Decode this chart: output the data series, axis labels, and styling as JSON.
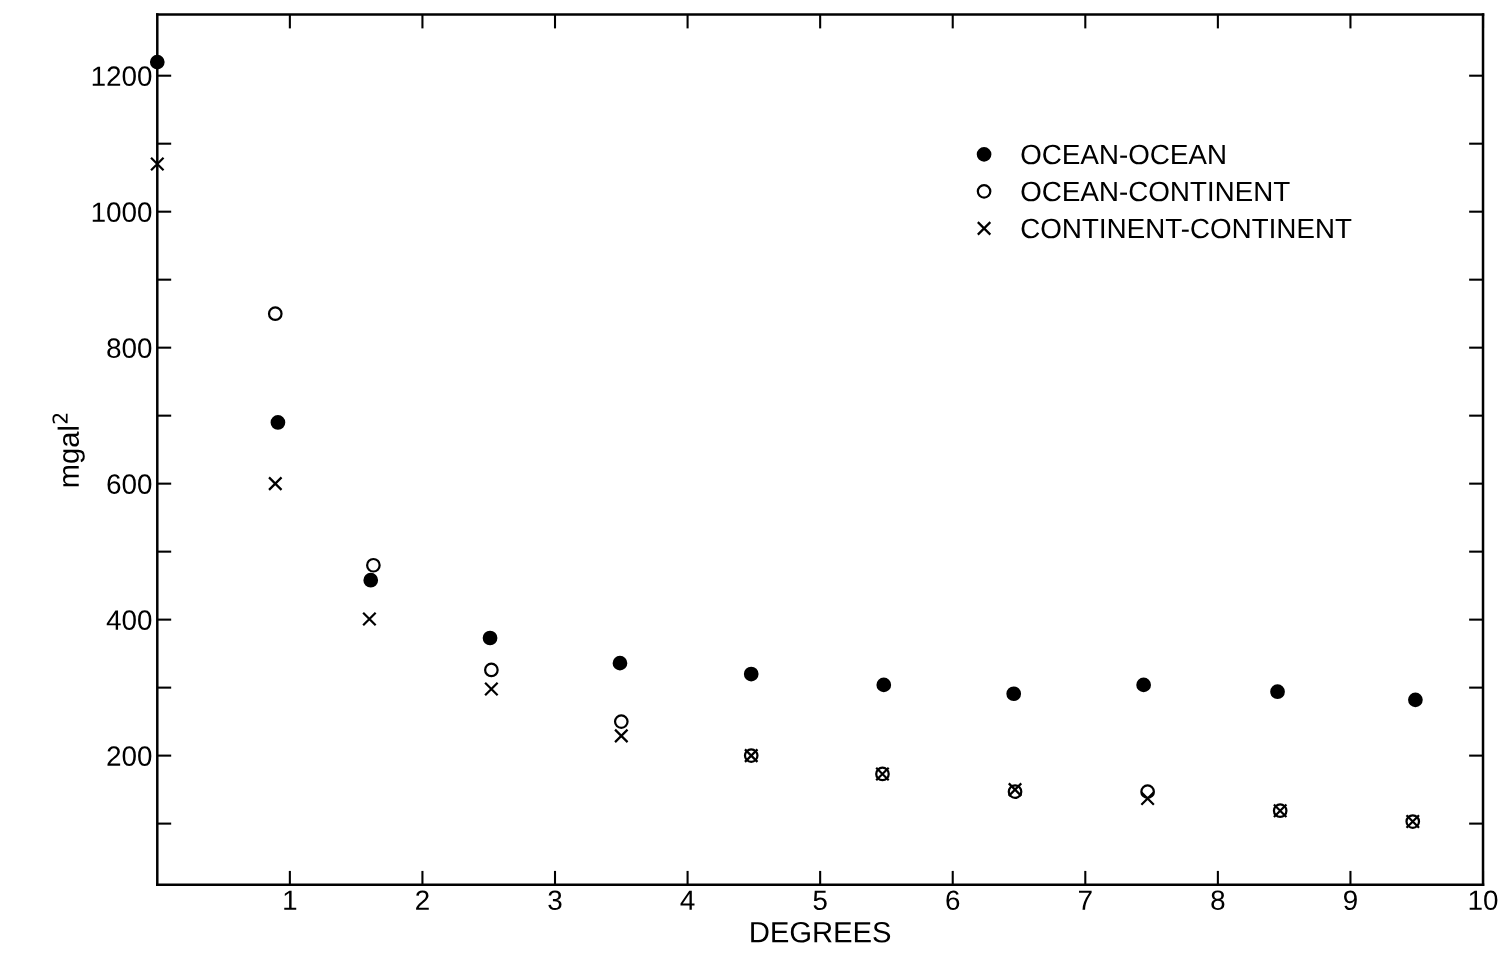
{
  "chart_data": {
    "type": "scatter",
    "xlabel": "DEGREES",
    "ylabel": "mgal$^{2}$",
    "xlim": [
      0,
      10
    ],
    "xticks": [
      1,
      2,
      3,
      4,
      5,
      6,
      7,
      8,
      9,
      10
    ],
    "ylim": [
      10,
      1290
    ],
    "yticks": [
      {
        "value": 100,
        "label": null
      },
      200,
      {
        "value": 300,
        "label": null
      },
      400,
      {
        "value": 500,
        "label": null
      },
      600,
      {
        "value": 700,
        "label": null
      },
      800,
      {
        "value": 900,
        "label": null
      },
      1000,
      {
        "value": 1100,
        "label": null
      },
      1200
    ],
    "legend": "top right",
    "grid": false,
    "series": [
      {
        "name": "OCEAN-OCEAN",
        "color": "#000000",
        "marker": "circle",
        "x": [
          0,
          0.91,
          1.61,
          2.51,
          3.49,
          4.48,
          5.48,
          6.46,
          7.44,
          8.45,
          9.49
        ],
        "values": [
          1220,
          690,
          458,
          373,
          336,
          320,
          304,
          291,
          304,
          294,
          282
        ]
      },
      {
        "name": "OCEAN-CONTINENT",
        "color": "#000000",
        "marker": "open circle",
        "x": [
          0.89,
          1.63,
          2.52,
          3.5,
          4.48,
          5.47,
          6.47,
          7.47,
          8.47,
          9.47
        ],
        "values": [
          850,
          480,
          326,
          250,
          200,
          173,
          147,
          147,
          119,
          103
        ]
      },
      {
        "name": "CONTINENT-CONTINENT",
        "color": "#000000",
        "marker": "cross",
        "x": [
          0,
          0.89,
          1.6,
          2.52,
          3.5,
          4.48,
          5.47,
          6.47,
          7.47,
          8.47,
          9.47
        ],
        "values": [
          1070,
          600,
          401,
          298,
          229,
          200,
          173,
          150,
          137,
          119,
          103
        ]
      }
    ]
  }
}
